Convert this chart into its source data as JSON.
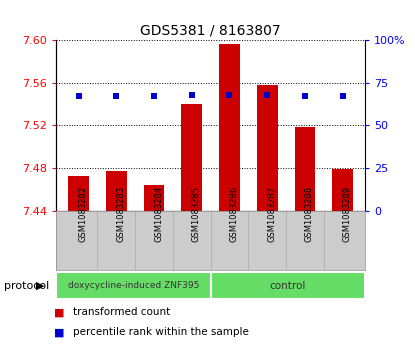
{
  "title": "GDS5381 / 8163807",
  "samples": [
    "GSM1083282",
    "GSM1083283",
    "GSM1083284",
    "GSM1083285",
    "GSM1083286",
    "GSM1083287",
    "GSM1083288",
    "GSM1083289"
  ],
  "bar_values": [
    7.472,
    7.477,
    7.464,
    7.54,
    7.596,
    7.558,
    7.518,
    7.479
  ],
  "percentile_values": [
    67,
    67,
    67,
    68,
    68,
    68,
    67,
    67
  ],
  "ylim_left": [
    7.44,
    7.6
  ],
  "ylim_right": [
    0,
    100
  ],
  "yticks_left": [
    7.44,
    7.48,
    7.52,
    7.56,
    7.6
  ],
  "yticks_right": [
    0,
    25,
    50,
    75,
    100
  ],
  "bar_color": "#cc0000",
  "percentile_color": "#0000cc",
  "bar_bottom": 7.44,
  "groups": [
    {
      "label": "doxycycline-induced ZNF395",
      "start": 0,
      "end": 4,
      "color": "#66dd66"
    },
    {
      "label": "control",
      "start": 4,
      "end": 8,
      "color": "#66dd66"
    }
  ],
  "protocol_label": "protocol",
  "legend_items": [
    {
      "color": "#cc0000",
      "label": "transformed count"
    },
    {
      "color": "#0000cc",
      "label": "percentile rank within the sample"
    }
  ],
  "background_color": "#ffffff",
  "plot_bg_color": "#ffffff",
  "xlabel_area_color": "#cccccc",
  "title_fontsize": 10,
  "tick_fontsize": 8,
  "sample_fontsize": 6,
  "legend_fontsize": 7.5
}
